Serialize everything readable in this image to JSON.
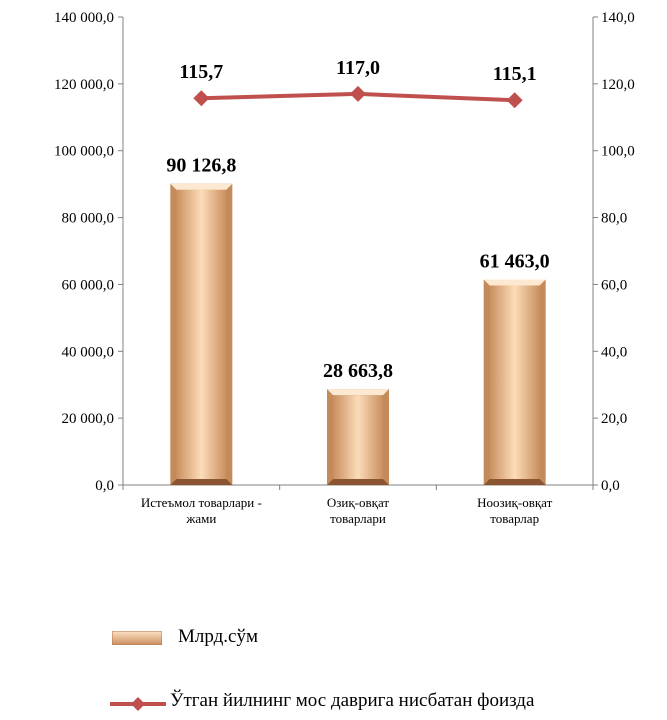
{
  "chart_data": {
    "type": "bar",
    "categories": [
      [
        "Истеъмол товарлари -",
        "жами"
      ],
      [
        "Озиқ-овқат",
        "товарлари"
      ],
      [
        "Ноозиқ-овқат",
        "товарлар"
      ]
    ],
    "series": [
      {
        "name": "Млрд.сўм",
        "type": "bar",
        "axis": "left",
        "values": [
          90126.8,
          28663.8,
          61463.0
        ],
        "labels": [
          "90 126,8",
          "28 663,8",
          "61 463,0"
        ]
      },
      {
        "name": "Ўтган йилнинг мос даврига нисбатан фоизда",
        "type": "line",
        "axis": "right",
        "values": [
          115.7,
          117.0,
          115.1
        ],
        "labels": [
          "115,7",
          "117,0",
          "115,1"
        ]
      }
    ],
    "y_left": {
      "min": 0,
      "max": 140000,
      "ticks": [
        "0,0",
        "20 000,0",
        "40 000,0",
        "60 000,0",
        "80 000,0",
        "100 000,0",
        "120 000,0",
        "140 000,0"
      ]
    },
    "y_right": {
      "min": 0,
      "max": 140,
      "ticks": [
        "0,0",
        "20,0",
        "40,0",
        "60,0",
        "80,0",
        "100,0",
        "120,0",
        "140,0"
      ]
    },
    "grid": false,
    "legend_position": "bottom",
    "colors": {
      "bar_light": "#fbdcba",
      "bar_dark": "#b87a4a",
      "line": "#c0504d"
    }
  }
}
